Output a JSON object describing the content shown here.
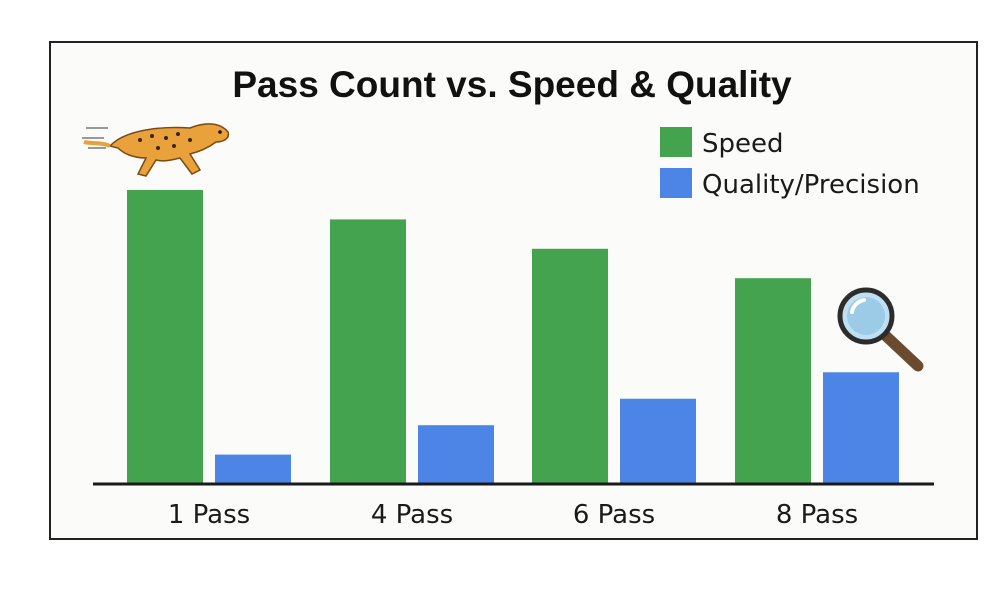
{
  "chart_data": {
    "type": "bar",
    "title": "Pass Count vs. Speed & Quality",
    "categories": [
      "1 Pass",
      "4 Pass",
      "6 Pass",
      "8 Pass"
    ],
    "series": [
      {
        "name": "Speed",
        "color": "#43a34f",
        "values": [
          100,
          90,
          80,
          70
        ]
      },
      {
        "name": "Quality/Precision",
        "color": "#4d85e6",
        "values": [
          10,
          20,
          29,
          38
        ]
      }
    ],
    "ylim": [
      0,
      100
    ],
    "grid": false,
    "legend_position": "top-right",
    "icons": [
      "running-cheetah-icon",
      "magnifying-glass-icon"
    ]
  }
}
